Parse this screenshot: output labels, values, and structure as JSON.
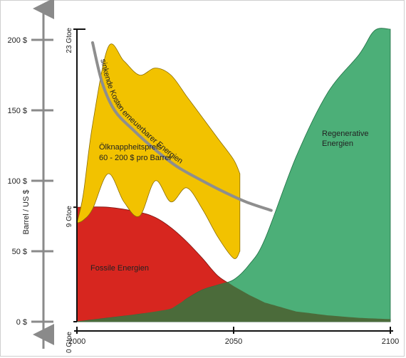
{
  "chart_data": {
    "type": "area",
    "x_axis": {
      "range": [
        2000,
        2100
      ],
      "ticks": [
        2000,
        2050,
        2100
      ],
      "tick_labels": [
        "2000",
        "2050",
        "2100"
      ]
    },
    "price_axis": {
      "label": "Barrel / US $",
      "range": [
        0,
        200
      ],
      "ticks": [
        0,
        50,
        100,
        150,
        200
      ],
      "tick_labels": [
        "0 $",
        "50 $",
        "100 $",
        "150 $",
        "200 $"
      ]
    },
    "energy_axis": {
      "ticks": [
        0,
        9,
        23
      ],
      "tick_labels": [
        "0 Gtoe",
        "9 Gtoe",
        "23 Gtoe"
      ]
    },
    "series": [
      {
        "name": "Fossile Energien",
        "color": "#d7261f",
        "x": [
          2000,
          2010,
          2020,
          2025,
          2030,
          2035,
          2040,
          2045,
          2050,
          2055,
          2060,
          2070,
          2080,
          2090,
          2100
        ],
        "values": [
          9,
          9,
          8.6,
          8.2,
          7.4,
          6.3,
          5,
          3.6,
          2.8,
          2.1,
          1.5,
          0.8,
          0.5,
          0.3,
          0.2
        ]
      },
      {
        "name": "Regenerative Energien",
        "color": "#4caf78",
        "x": [
          2000,
          2010,
          2020,
          2030,
          2035,
          2040,
          2045,
          2050,
          2055,
          2060,
          2070,
          2080,
          2090,
          2095,
          2100
        ],
        "values": [
          0,
          0.3,
          0.6,
          1,
          1.8,
          2.5,
          2.9,
          3.3,
          4.5,
          6.5,
          13,
          18,
          21,
          22.9,
          23
        ]
      }
    ],
    "price_band": {
      "label": "Ölknappheitspreis\n60 - 200 $ pro Barrel",
      "color": "#f2c200",
      "x": [
        2000,
        2002,
        2005,
        2010,
        2015,
        2020,
        2025,
        2030,
        2035,
        2040,
        2045,
        2050,
        2052
      ],
      "upper": [
        70,
        90,
        140,
        195,
        185,
        175,
        180,
        175,
        160,
        145,
        130,
        115,
        105
      ],
      "lower": [
        70,
        72,
        80,
        105,
        85,
        75,
        100,
        85,
        95,
        80,
        60,
        45,
        50
      ]
    },
    "cost_curve": {
      "label": "sinkende Kosten erneuerbarer Energien",
      "color": "#8e8e8e",
      "x": [
        2005,
        2008,
        2012,
        2018,
        2025,
        2032,
        2040,
        2047,
        2054,
        2062
      ],
      "values": [
        198,
        170,
        150,
        136,
        122,
        110,
        100,
        92,
        85,
        79
      ]
    },
    "annotations": [
      "Fossile Energien",
      "Regenerative Energien"
    ]
  }
}
